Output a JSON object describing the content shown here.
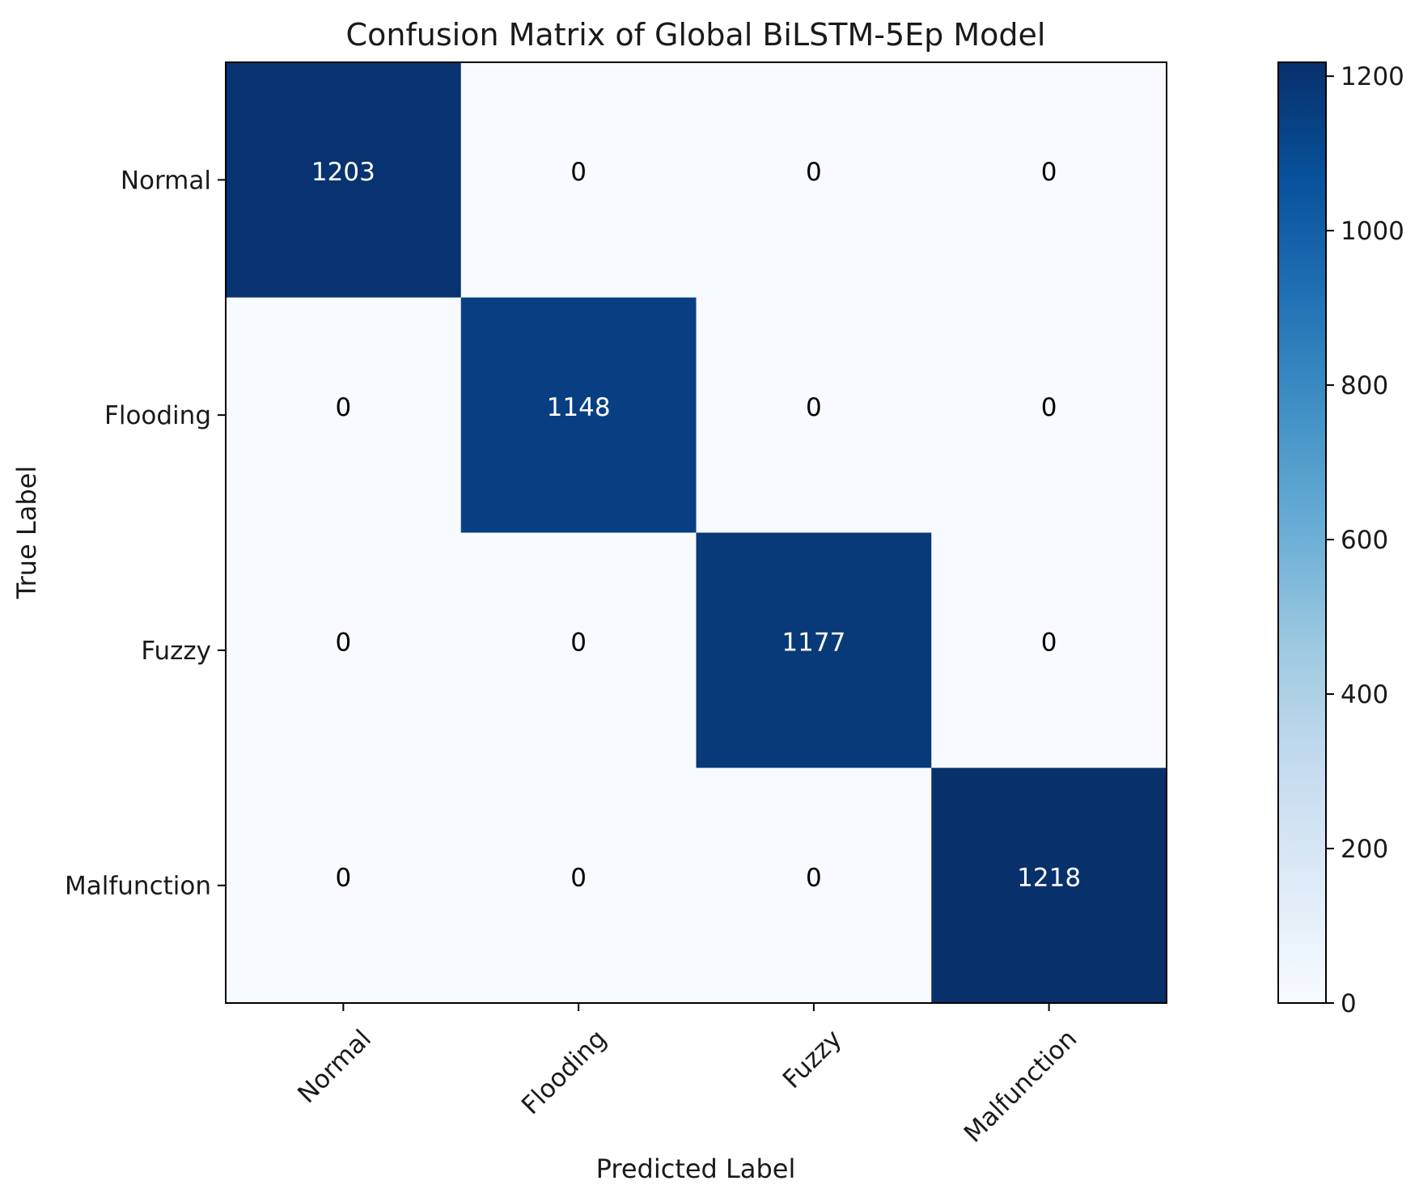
{
  "chart_data": {
    "type": "heatmap",
    "title": "Confusion Matrix of Global BiLSTM-5Ep Model",
    "xlabel": "Predicted Label",
    "ylabel": "True Label",
    "x_categories": [
      "Normal",
      "Flooding",
      "Fuzzy",
      "Malfunction"
    ],
    "y_categories": [
      "Normal",
      "Flooding",
      "Fuzzy",
      "Malfunction"
    ],
    "values": [
      [
        1203,
        0,
        0,
        0
      ],
      [
        0,
        1148,
        0,
        0
      ],
      [
        0,
        0,
        1177,
        0
      ],
      [
        0,
        0,
        0,
        1218
      ]
    ],
    "colormap": "Blues",
    "colorbar": {
      "range": [
        0,
        1218
      ],
      "ticks": [
        0,
        200,
        400,
        600,
        800,
        1000,
        1200
      ]
    },
    "colors": {
      "low": "#f7fbff",
      "high": "#08306b",
      "text_dark_cell": "#ffffff",
      "text_light_cell": "#000000"
    }
  }
}
